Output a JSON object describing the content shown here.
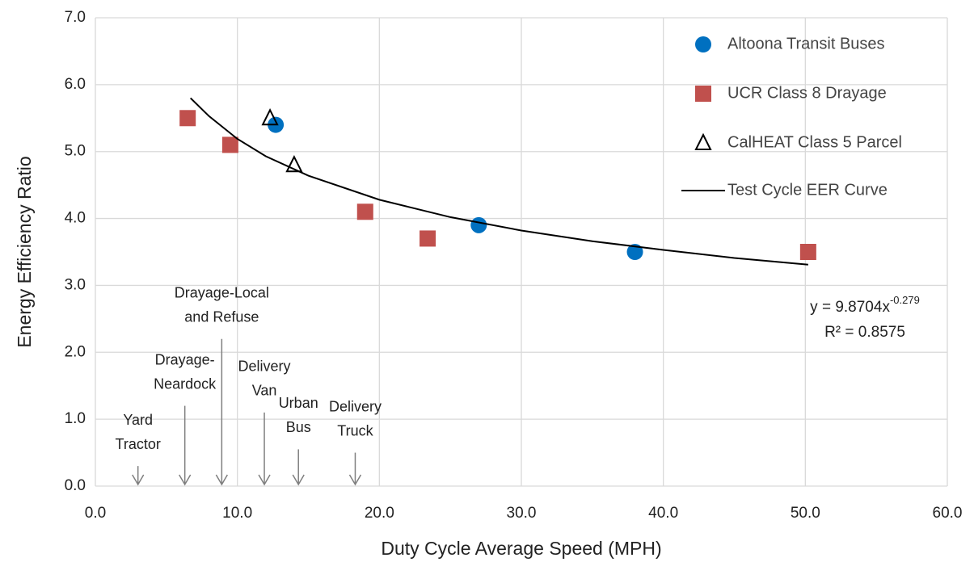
{
  "chart_data": {
    "type": "scatter",
    "xlabel": "Duty Cycle Average Speed (MPH)",
    "ylabel": "Energy Efficiency Ratio",
    "xlim": [
      0,
      60
    ],
    "ylim": [
      0,
      7
    ],
    "xticks": [
      {
        "value": 0,
        "label": "0.0"
      },
      {
        "value": 10,
        "label": "10.0"
      },
      {
        "value": 20,
        "label": "20.0"
      },
      {
        "value": 30,
        "label": "30.0"
      },
      {
        "value": 40,
        "label": "40.0"
      },
      {
        "value": 50,
        "label": "50.0"
      },
      {
        "value": 60,
        "label": "60.0"
      }
    ],
    "yticks": [
      {
        "value": 0,
        "label": "0.0"
      },
      {
        "value": 1,
        "label": "1.0"
      },
      {
        "value": 2,
        "label": "2.0"
      },
      {
        "value": 3,
        "label": "3.0"
      },
      {
        "value": 4,
        "label": "4.0"
      },
      {
        "value": 5,
        "label": "5.0"
      },
      {
        "value": 6,
        "label": "6.0"
      },
      {
        "value": 7,
        "label": "7.0"
      }
    ],
    "grid": true,
    "legend": "upper right",
    "series": [
      {
        "name": "Altoona Transit Buses",
        "marker": "circle",
        "color": "#0070c0",
        "x": [
          12.7,
          27,
          38
        ],
        "values": [
          5.4,
          3.9,
          3.5
        ]
      },
      {
        "name": "UCR Class 8 Drayage",
        "marker": "square",
        "color": "#c0504d",
        "x": [
          6.5,
          9.5,
          19,
          23.4,
          50.2
        ],
        "values": [
          5.5,
          5.1,
          4.1,
          3.7,
          3.5
        ]
      },
      {
        "name": "CalHEAT Class 5 Parcel",
        "marker": "triangle",
        "color": "#000000",
        "x": [
          12.3,
          14
        ],
        "values": [
          5.5,
          4.8
        ]
      },
      {
        "name": "Test Cycle EER Curve",
        "marker": "line",
        "color": "#000000",
        "x": [
          6.7,
          8,
          10,
          12,
          15,
          20,
          25,
          30,
          35,
          40,
          45,
          50.2
        ],
        "values": [
          5.8,
          5.53,
          5.19,
          4.93,
          4.64,
          4.28,
          4.02,
          3.82,
          3.66,
          3.53,
          3.41,
          3.31
        ]
      }
    ],
    "equation": {
      "base": "y = 9.8704x",
      "exponent": "-0.279",
      "r2": "R² = 0.8575"
    },
    "annotations": [
      {
        "lines": [
          "Yard",
          "Tractor"
        ],
        "x": 3.0,
        "arrow_top": 0.3
      },
      {
        "lines": [
          "Drayage-",
          "Neardock"
        ],
        "x": 6.3,
        "arrow_top": 1.2
      },
      {
        "lines": [
          "Drayage-Local",
          "and Refuse"
        ],
        "x": 8.9,
        "arrow_top": 2.2
      },
      {
        "lines": [
          "Delivery",
          "Van"
        ],
        "x": 11.9,
        "arrow_top": 1.1
      },
      {
        "lines": [
          "Urban",
          "Bus"
        ],
        "x": 14.3,
        "arrow_top": 0.55
      },
      {
        "lines": [
          "Delivery",
          "Truck"
        ],
        "x": 18.3,
        "arrow_top": 0.5
      }
    ]
  }
}
